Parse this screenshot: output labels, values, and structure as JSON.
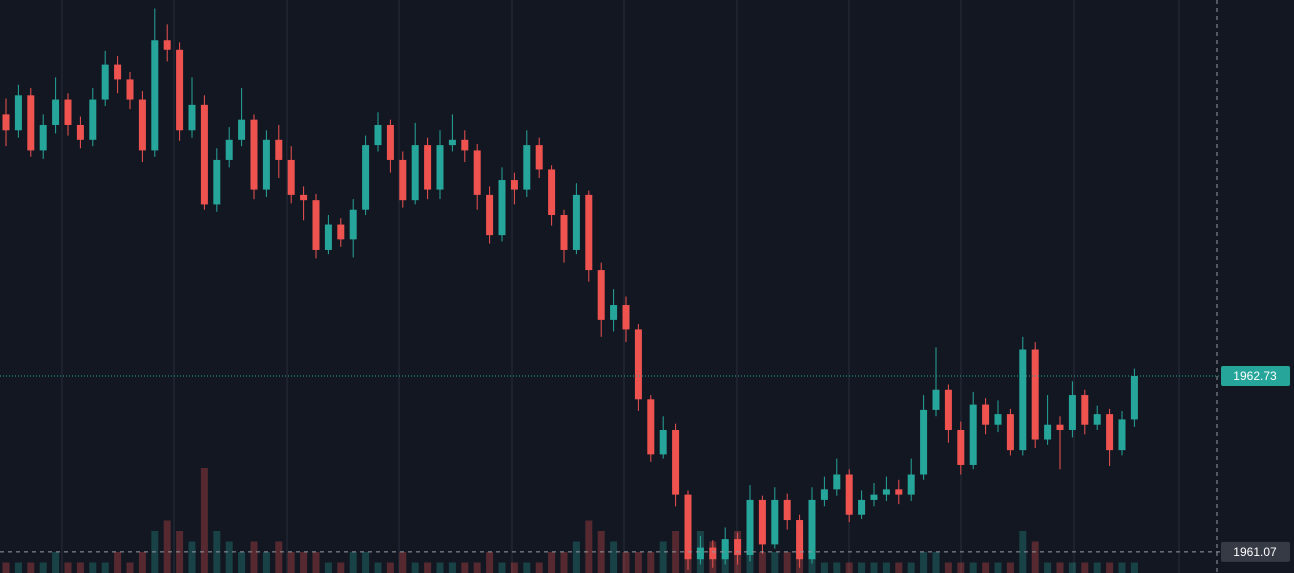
{
  "chart_data": {
    "type": "candlestick",
    "ylim": [
      1960.87,
      1966.28
    ],
    "up_color": "#26a69a",
    "down_color": "#ef5350",
    "open": [
      1965.2,
      1965.05,
      1965.38,
      1964.86,
      1965.1,
      1965.34,
      1965.1,
      1964.96,
      1965.34,
      1965.67,
      1965.53,
      1965.34,
      1964.86,
      1965.9,
      1965.81,
      1965.05,
      1965.29,
      1964.35,
      1964.77,
      1964.96,
      1965.15,
      1964.49,
      1964.96,
      1964.77,
      1964.44,
      1964.39,
      1963.92,
      1964.16,
      1964.02,
      1964.3,
      1964.91,
      1965.1,
      1964.77,
      1964.39,
      1964.91,
      1964.49,
      1964.91,
      1964.96,
      1964.86,
      1964.44,
      1964.06,
      1964.58,
      1964.49,
      1964.91,
      1964.68,
      1964.25,
      1963.92,
      1964.44,
      1963.73,
      1963.26,
      1963.4,
      1963.17,
      1962.51,
      1961.99,
      1962.22,
      1961.61,
      1961.0,
      1961.11,
      1961.0,
      1961.19,
      1961.04,
      1961.56,
      1961.14,
      1961.56,
      1961.37,
      1961.0,
      1961.56,
      1961.66,
      1961.8,
      1961.42,
      1961.56,
      1961.61,
      1961.66,
      1961.61,
      1961.8,
      1962.41,
      1962.6,
      1962.22,
      1961.89,
      1962.46,
      1962.27,
      1962.37,
      1962.03,
      1962.98,
      1962.13,
      1962.27,
      1962.22,
      1962.55,
      1962.27,
      1962.37,
      1962.03,
      1962.32
    ],
    "high": [
      1965.35,
      1965.48,
      1965.45,
      1965.2,
      1965.55,
      1965.4,
      1965.18,
      1965.45,
      1965.8,
      1965.75,
      1965.6,
      1965.42,
      1966.2,
      1966.05,
      1965.88,
      1965.55,
      1965.38,
      1964.88,
      1965.08,
      1965.45,
      1965.2,
      1965.05,
      1965.1,
      1964.9,
      1964.52,
      1964.45,
      1964.25,
      1964.22,
      1964.4,
      1965.0,
      1965.22,
      1965.15,
      1964.85,
      1965.12,
      1964.98,
      1965.05,
      1965.2,
      1965.05,
      1964.92,
      1964.52,
      1964.7,
      1964.65,
      1965.05,
      1964.98,
      1964.72,
      1964.3,
      1964.55,
      1964.48,
      1963.8,
      1963.55,
      1963.48,
      1963.22,
      1962.55,
      1962.35,
      1962.28,
      1961.65,
      1961.22,
      1961.18,
      1961.3,
      1961.25,
      1961.7,
      1961.6,
      1961.68,
      1961.62,
      1961.42,
      1961.68,
      1961.78,
      1961.95,
      1961.85,
      1961.65,
      1961.72,
      1961.78,
      1961.75,
      1961.95,
      1962.55,
      1963.0,
      1962.65,
      1962.3,
      1962.58,
      1962.52,
      1962.5,
      1962.42,
      1963.1,
      1963.05,
      1962.55,
      1962.35,
      1962.68,
      1962.6,
      1962.45,
      1962.42,
      1962.4,
      1962.8
    ],
    "low": [
      1964.9,
      1964.98,
      1964.8,
      1964.78,
      1965.02,
      1965.0,
      1964.88,
      1964.9,
      1965.28,
      1965.4,
      1965.25,
      1964.75,
      1964.8,
      1965.7,
      1964.95,
      1964.98,
      1964.3,
      1964.28,
      1964.7,
      1964.9,
      1964.4,
      1964.42,
      1964.6,
      1964.36,
      1964.2,
      1963.84,
      1963.88,
      1963.95,
      1963.85,
      1964.25,
      1964.85,
      1964.65,
      1964.32,
      1964.35,
      1964.4,
      1964.4,
      1964.85,
      1964.75,
      1964.3,
      1963.98,
      1964.0,
      1964.35,
      1964.42,
      1964.6,
      1964.15,
      1963.8,
      1963.88,
      1963.62,
      1963.1,
      1963.15,
      1963.05,
      1962.4,
      1961.92,
      1961.95,
      1961.5,
      1960.9,
      1960.95,
      1960.92,
      1960.95,
      1960.95,
      1960.98,
      1961.05,
      1961.1,
      1961.28,
      1960.92,
      1960.96,
      1961.5,
      1961.6,
      1961.35,
      1961.38,
      1961.5,
      1961.55,
      1961.52,
      1961.55,
      1961.75,
      1962.35,
      1962.1,
      1961.8,
      1961.85,
      1962.18,
      1962.2,
      1961.98,
      1961.98,
      1962.05,
      1962.08,
      1961.85,
      1962.15,
      1962.18,
      1962.22,
      1961.88,
      1961.98,
      1962.25
    ],
    "close": [
      1965.05,
      1965.38,
      1964.86,
      1965.1,
      1965.34,
      1965.1,
      1964.96,
      1965.34,
      1965.67,
      1965.53,
      1965.34,
      1964.86,
      1965.9,
      1965.81,
      1965.05,
      1965.29,
      1964.35,
      1964.77,
      1964.96,
      1965.15,
      1964.49,
      1964.96,
      1964.77,
      1964.44,
      1964.39,
      1963.92,
      1964.16,
      1964.02,
      1964.3,
      1964.91,
      1965.1,
      1964.77,
      1964.39,
      1964.91,
      1964.49,
      1964.91,
      1964.96,
      1964.86,
      1964.44,
      1964.06,
      1964.58,
      1964.49,
      1964.91,
      1964.68,
      1964.25,
      1963.92,
      1964.44,
      1963.73,
      1963.26,
      1963.4,
      1963.17,
      1962.51,
      1961.99,
      1962.22,
      1961.61,
      1961.0,
      1961.11,
      1961.0,
      1961.19,
      1961.04,
      1961.56,
      1961.14,
      1961.56,
      1961.37,
      1961.0,
      1961.56,
      1961.66,
      1961.8,
      1961.42,
      1961.56,
      1961.61,
      1961.66,
      1961.61,
      1961.8,
      1962.41,
      1962.6,
      1962.22,
      1961.89,
      1962.46,
      1962.27,
      1962.37,
      1962.03,
      1962.98,
      1962.13,
      1962.27,
      1962.22,
      1962.55,
      1962.27,
      1962.37,
      1962.03,
      1962.32,
      1962.73
    ],
    "volume": [
      1,
      1,
      1,
      1,
      2,
      1,
      1,
      1,
      1,
      2,
      1,
      2,
      4,
      5,
      4,
      3,
      10,
      4,
      3,
      2,
      3,
      2,
      3,
      2,
      2,
      2,
      1,
      1,
      2,
      2,
      1,
      1,
      2,
      1,
      1,
      1,
      1,
      1,
      1,
      2,
      1,
      1,
      1,
      1,
      2,
      2,
      3,
      5,
      4,
      3,
      2,
      2,
      2,
      3,
      4,
      5,
      4,
      3,
      3,
      4,
      3,
      2,
      2,
      2,
      3,
      2,
      1,
      1,
      1,
      1,
      1,
      1,
      1,
      1,
      2,
      2,
      1,
      1,
      1,
      1,
      1,
      1,
      4,
      3,
      1,
      1,
      1,
      1,
      1,
      1,
      1,
      1
    ],
    "last_price": 1962.73,
    "crosshair_price": 1961.07
  }
}
